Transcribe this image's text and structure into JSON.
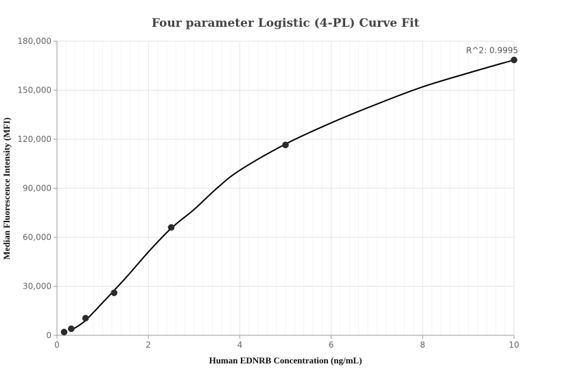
{
  "chart_data": {
    "type": "scatter",
    "title": "Four parameter Logistic (4-PL) Curve Fit",
    "xlabel": "Human EDNRB Concentration (ng/mL)",
    "ylabel": "Median Fluorescence Intensity (MFI)",
    "xlim": [
      0,
      10
    ],
    "ylim": [
      0,
      180000
    ],
    "x_ticks": [
      0,
      2,
      4,
      6,
      8,
      10
    ],
    "x_tick_labels": [
      "0",
      "2",
      "4",
      "6",
      "8",
      "10"
    ],
    "y_ticks": [
      0,
      30000,
      60000,
      90000,
      120000,
      150000,
      180000
    ],
    "y_tick_labels": [
      "0",
      "30,000",
      "60,000",
      "90,000",
      "120,000",
      "150,000",
      "180,000"
    ],
    "grid": true,
    "series": [
      {
        "points": [
          {
            "x": 0.156,
            "y": 2000
          },
          {
            "x": 0.3125,
            "y": 4000
          },
          {
            "x": 0.625,
            "y": 10500
          },
          {
            "x": 1.25,
            "y": 26000
          },
          {
            "x": 2.5,
            "y": 66000
          },
          {
            "x": 5,
            "y": 116500
          },
          {
            "x": 10,
            "y": 168500
          }
        ]
      }
    ],
    "fit_curve": [
      {
        "x": 0.3,
        "y": 3000
      },
      {
        "x": 0.6,
        "y": 8500
      },
      {
        "x": 1.0,
        "y": 20000
      },
      {
        "x": 1.5,
        "y": 35000
      },
      {
        "x": 2.0,
        "y": 51000
      },
      {
        "x": 2.5,
        "y": 65500
      },
      {
        "x": 3.0,
        "y": 77000
      },
      {
        "x": 3.5,
        "y": 90000
      },
      {
        "x": 4.0,
        "y": 101000
      },
      {
        "x": 5.0,
        "y": 117000
      },
      {
        "x": 6.0,
        "y": 130000
      },
      {
        "x": 7.0,
        "y": 141500
      },
      {
        "x": 8.0,
        "y": 152000
      },
      {
        "x": 9.0,
        "y": 160500
      },
      {
        "x": 10.0,
        "y": 168500
      }
    ],
    "annotations": [
      {
        "text": "R^2: 0.9995",
        "x": 10,
        "y": 168500
      }
    ]
  }
}
